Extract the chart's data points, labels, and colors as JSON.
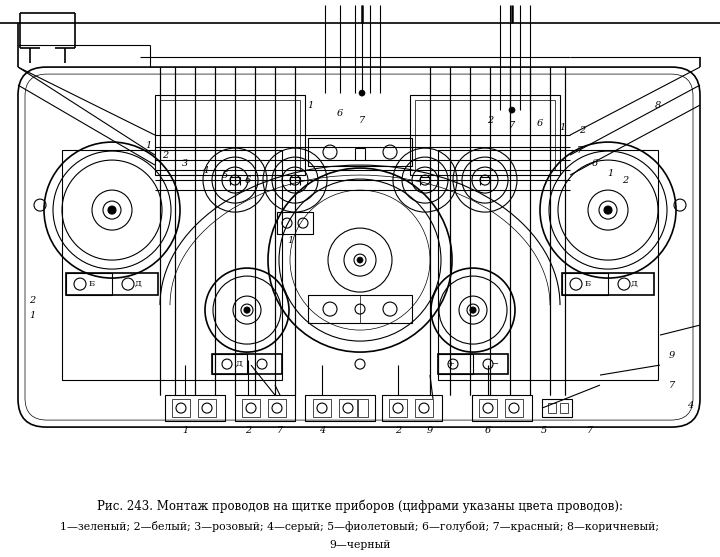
{
  "title": "Рис. 243. Монтаж проводов на щитке приборов (цифрами указаны цвета проводов):",
  "legend_line1": "1—зеленый; 2—белый; 3—розовый; 4—серый; 5—фиолетовый; 6—голубой; 7—красный; 8—коричневый;",
  "legend_line2": "9—черный",
  "bg_color": "#ffffff",
  "line_color": "#000000",
  "fig_width": 7.2,
  "fig_height": 5.57,
  "dpi": 100
}
